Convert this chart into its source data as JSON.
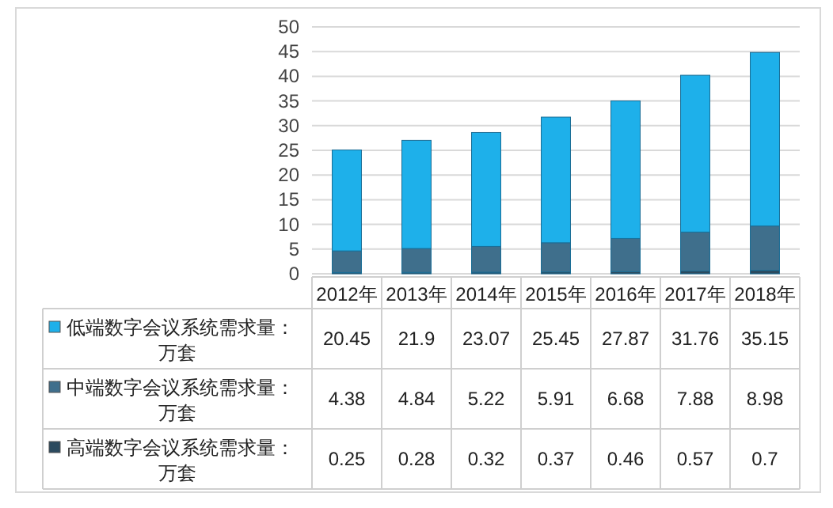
{
  "chart_data": {
    "type": "bar",
    "stacked": true,
    "categories": [
      "2012年",
      "2013年",
      "2014年",
      "2015年",
      "2016年",
      "2017年",
      "2018年"
    ],
    "series": [
      {
        "name": "高端数字会议系统需求量：万套",
        "color": "#2b4a5e",
        "values": [
          0.25,
          0.28,
          0.32,
          0.37,
          0.46,
          0.57,
          0.7
        ]
      },
      {
        "name": "中端数字会议系统需求量：万套",
        "color": "#3f6f8c",
        "values": [
          4.38,
          4.84,
          5.22,
          5.91,
          6.68,
          7.88,
          8.98
        ]
      },
      {
        "name": "低端数字会议系统需求量：万套",
        "color": "#1eb0ea",
        "values": [
          20.45,
          21.9,
          23.07,
          25.45,
          27.87,
          31.76,
          35.15
        ]
      }
    ],
    "ylim": [
      0,
      50
    ],
    "yticks": [
      0,
      5,
      10,
      15,
      20,
      25,
      30,
      35,
      40,
      45,
      50
    ],
    "grid": "y",
    "data_labels": true,
    "legend": "bottom"
  }
}
